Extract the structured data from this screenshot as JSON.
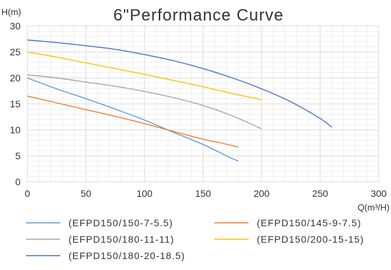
{
  "chart_data": {
    "type": "line",
    "title": "6\"Performance Curve",
    "xlabel": "Q(m³/H)",
    "ylabel": "H(m)",
    "xlim": [
      0,
      300
    ],
    "ylim": [
      0,
      30
    ],
    "x_ticks": [
      0,
      50,
      100,
      150,
      200,
      250,
      300
    ],
    "y_ticks": [
      0,
      5,
      10,
      15,
      20,
      25,
      30
    ],
    "grid": true,
    "legend_position": "bottom",
    "series": [
      {
        "name": "(EFPD150/150-7-5.5)",
        "color": "#5B9BD5",
        "points": [
          [
            0,
            20.0
          ],
          [
            25,
            17.9
          ],
          [
            50,
            16.0
          ],
          [
            75,
            14.0
          ],
          [
            100,
            11.9
          ],
          [
            125,
            9.5
          ],
          [
            150,
            7.2
          ],
          [
            170,
            5.0
          ],
          [
            180,
            4.0
          ]
        ]
      },
      {
        "name": "(EFPD150/145-9-7.5)",
        "color": "#ED7D31",
        "points": [
          [
            0,
            16.5
          ],
          [
            25,
            15.2
          ],
          [
            50,
            13.9
          ],
          [
            75,
            12.6
          ],
          [
            100,
            11.2
          ],
          [
            125,
            9.7
          ],
          [
            150,
            8.2
          ],
          [
            165,
            7.5
          ],
          [
            180,
            6.7
          ]
        ]
      },
      {
        "name": "(EFPD150/180-11-11)",
        "color": "#A5A5A5",
        "points": [
          [
            0,
            20.6
          ],
          [
            25,
            20.0
          ],
          [
            50,
            19.2
          ],
          [
            75,
            18.4
          ],
          [
            100,
            17.4
          ],
          [
            125,
            16.2
          ],
          [
            150,
            14.7
          ],
          [
            175,
            12.7
          ],
          [
            200,
            10.2
          ]
        ]
      },
      {
        "name": "(EFPD150/200-15-15)",
        "color": "#FFC000",
        "points": [
          [
            0,
            25.0
          ],
          [
            25,
            24.0
          ],
          [
            50,
            22.9
          ],
          [
            75,
            21.8
          ],
          [
            100,
            20.7
          ],
          [
            125,
            19.5
          ],
          [
            150,
            18.3
          ],
          [
            175,
            17.0
          ],
          [
            200,
            15.8
          ]
        ]
      },
      {
        "name": "(EFPD150/180-20-18.5)",
        "color": "#4472C4",
        "points": [
          [
            0,
            27.3
          ],
          [
            25,
            26.8
          ],
          [
            50,
            26.2
          ],
          [
            75,
            25.5
          ],
          [
            100,
            24.5
          ],
          [
            125,
            23.3
          ],
          [
            150,
            21.8
          ],
          [
            175,
            20.0
          ],
          [
            200,
            17.9
          ],
          [
            225,
            15.4
          ],
          [
            250,
            12.2
          ],
          [
            260,
            10.5
          ]
        ]
      }
    ]
  },
  "colors": {
    "grid_major": "#d9d9d9",
    "grid_minor": "#eeeeee",
    "text": "#333333"
  }
}
